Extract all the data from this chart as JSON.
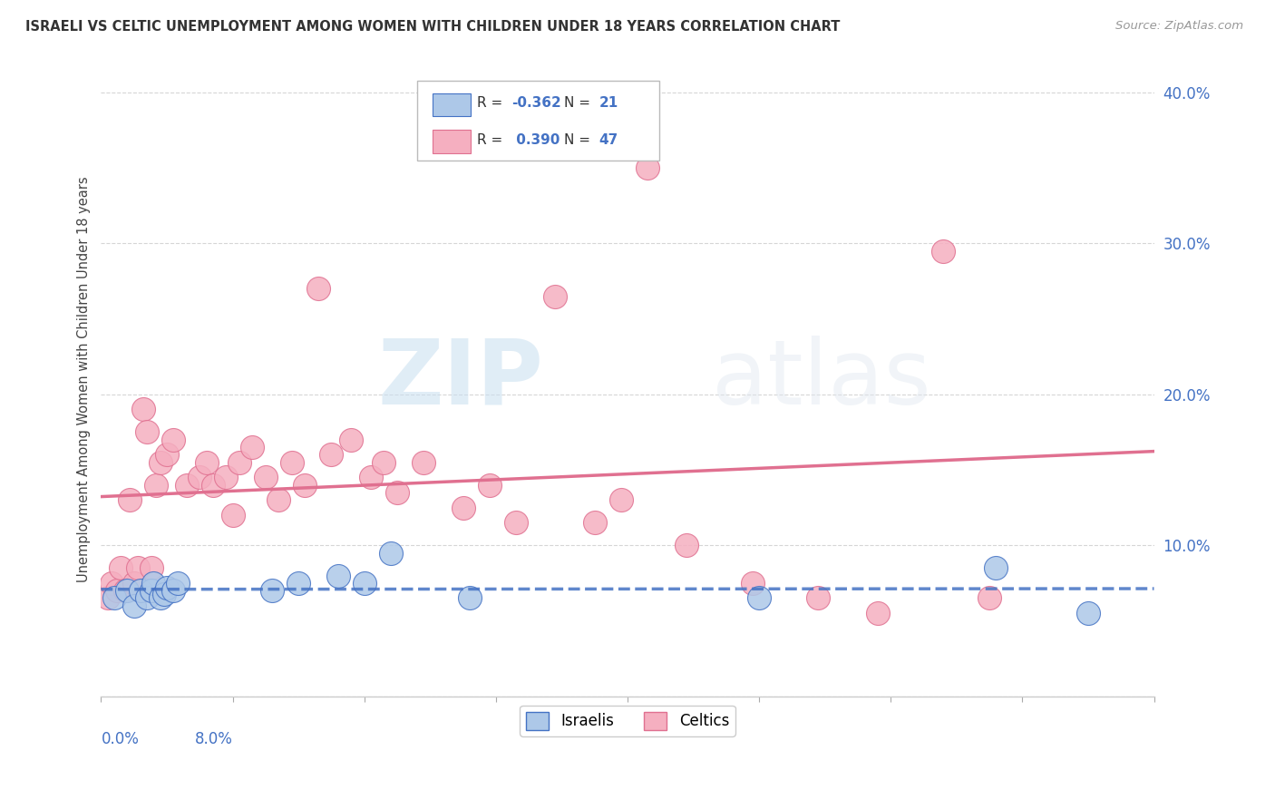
{
  "title": "ISRAELI VS CELTIC UNEMPLOYMENT AMONG WOMEN WITH CHILDREN UNDER 18 YEARS CORRELATION CHART",
  "source": "Source: ZipAtlas.com",
  "ylabel": "Unemployment Among Women with Children Under 18 years",
  "legend_r": [
    -0.362,
    0.39
  ],
  "legend_n": [
    21,
    47
  ],
  "israeli_color": "#adc8e8",
  "celtic_color": "#f5afc0",
  "israeli_line_color": "#4472c4",
  "celtic_line_color": "#e07090",
  "axis_label_color": "#4472c4",
  "xlim": [
    0.0,
    8.0
  ],
  "ylim": [
    0.0,
    42.0
  ],
  "yticks": [
    0.0,
    10.0,
    20.0,
    30.0,
    40.0
  ],
  "ytick_labels": [
    "",
    "10.0%",
    "20.0%",
    "30.0%",
    "40.0%"
  ],
  "xticks": [
    0.0,
    1.0,
    2.0,
    3.0,
    4.0,
    5.0,
    6.0,
    7.0,
    8.0
  ],
  "grid_color": "#cccccc",
  "background_color": "#ffffff",
  "israeli_x": [
    0.1,
    0.2,
    0.25,
    0.3,
    0.35,
    0.38,
    0.4,
    0.45,
    0.48,
    0.5,
    0.55,
    0.58,
    1.3,
    1.5,
    1.8,
    2.0,
    2.2,
    2.8,
    5.0,
    6.8,
    7.5
  ],
  "israeli_y": [
    6.5,
    7.0,
    6.0,
    7.0,
    6.5,
    7.0,
    7.5,
    6.5,
    6.8,
    7.2,
    7.0,
    7.5,
    7.0,
    7.5,
    8.0,
    7.5,
    9.5,
    6.5,
    6.5,
    8.5,
    5.5
  ],
  "celtic_x": [
    0.05,
    0.08,
    0.12,
    0.15,
    0.18,
    0.22,
    0.25,
    0.28,
    0.32,
    0.35,
    0.38,
    0.42,
    0.45,
    0.5,
    0.55,
    0.65,
    0.75,
    0.8,
    0.85,
    0.95,
    1.0,
    1.05,
    1.15,
    1.25,
    1.35,
    1.45,
    1.55,
    1.65,
    1.75,
    1.9,
    2.05,
    2.15,
    2.25,
    2.45,
    2.75,
    2.95,
    3.15,
    3.45,
    3.75,
    3.95,
    4.15,
    4.45,
    4.95,
    5.45,
    5.9,
    6.4,
    6.75
  ],
  "celtic_y": [
    6.5,
    7.5,
    7.0,
    8.5,
    7.0,
    13.0,
    7.5,
    8.5,
    19.0,
    17.5,
    8.5,
    14.0,
    15.5,
    16.0,
    17.0,
    14.0,
    14.5,
    15.5,
    14.0,
    14.5,
    12.0,
    15.5,
    16.5,
    14.5,
    13.0,
    15.5,
    14.0,
    27.0,
    16.0,
    17.0,
    14.5,
    15.5,
    13.5,
    15.5,
    12.5,
    14.0,
    11.5,
    26.5,
    11.5,
    13.0,
    35.0,
    10.0,
    7.5,
    6.5,
    5.5,
    29.5,
    6.5
  ]
}
